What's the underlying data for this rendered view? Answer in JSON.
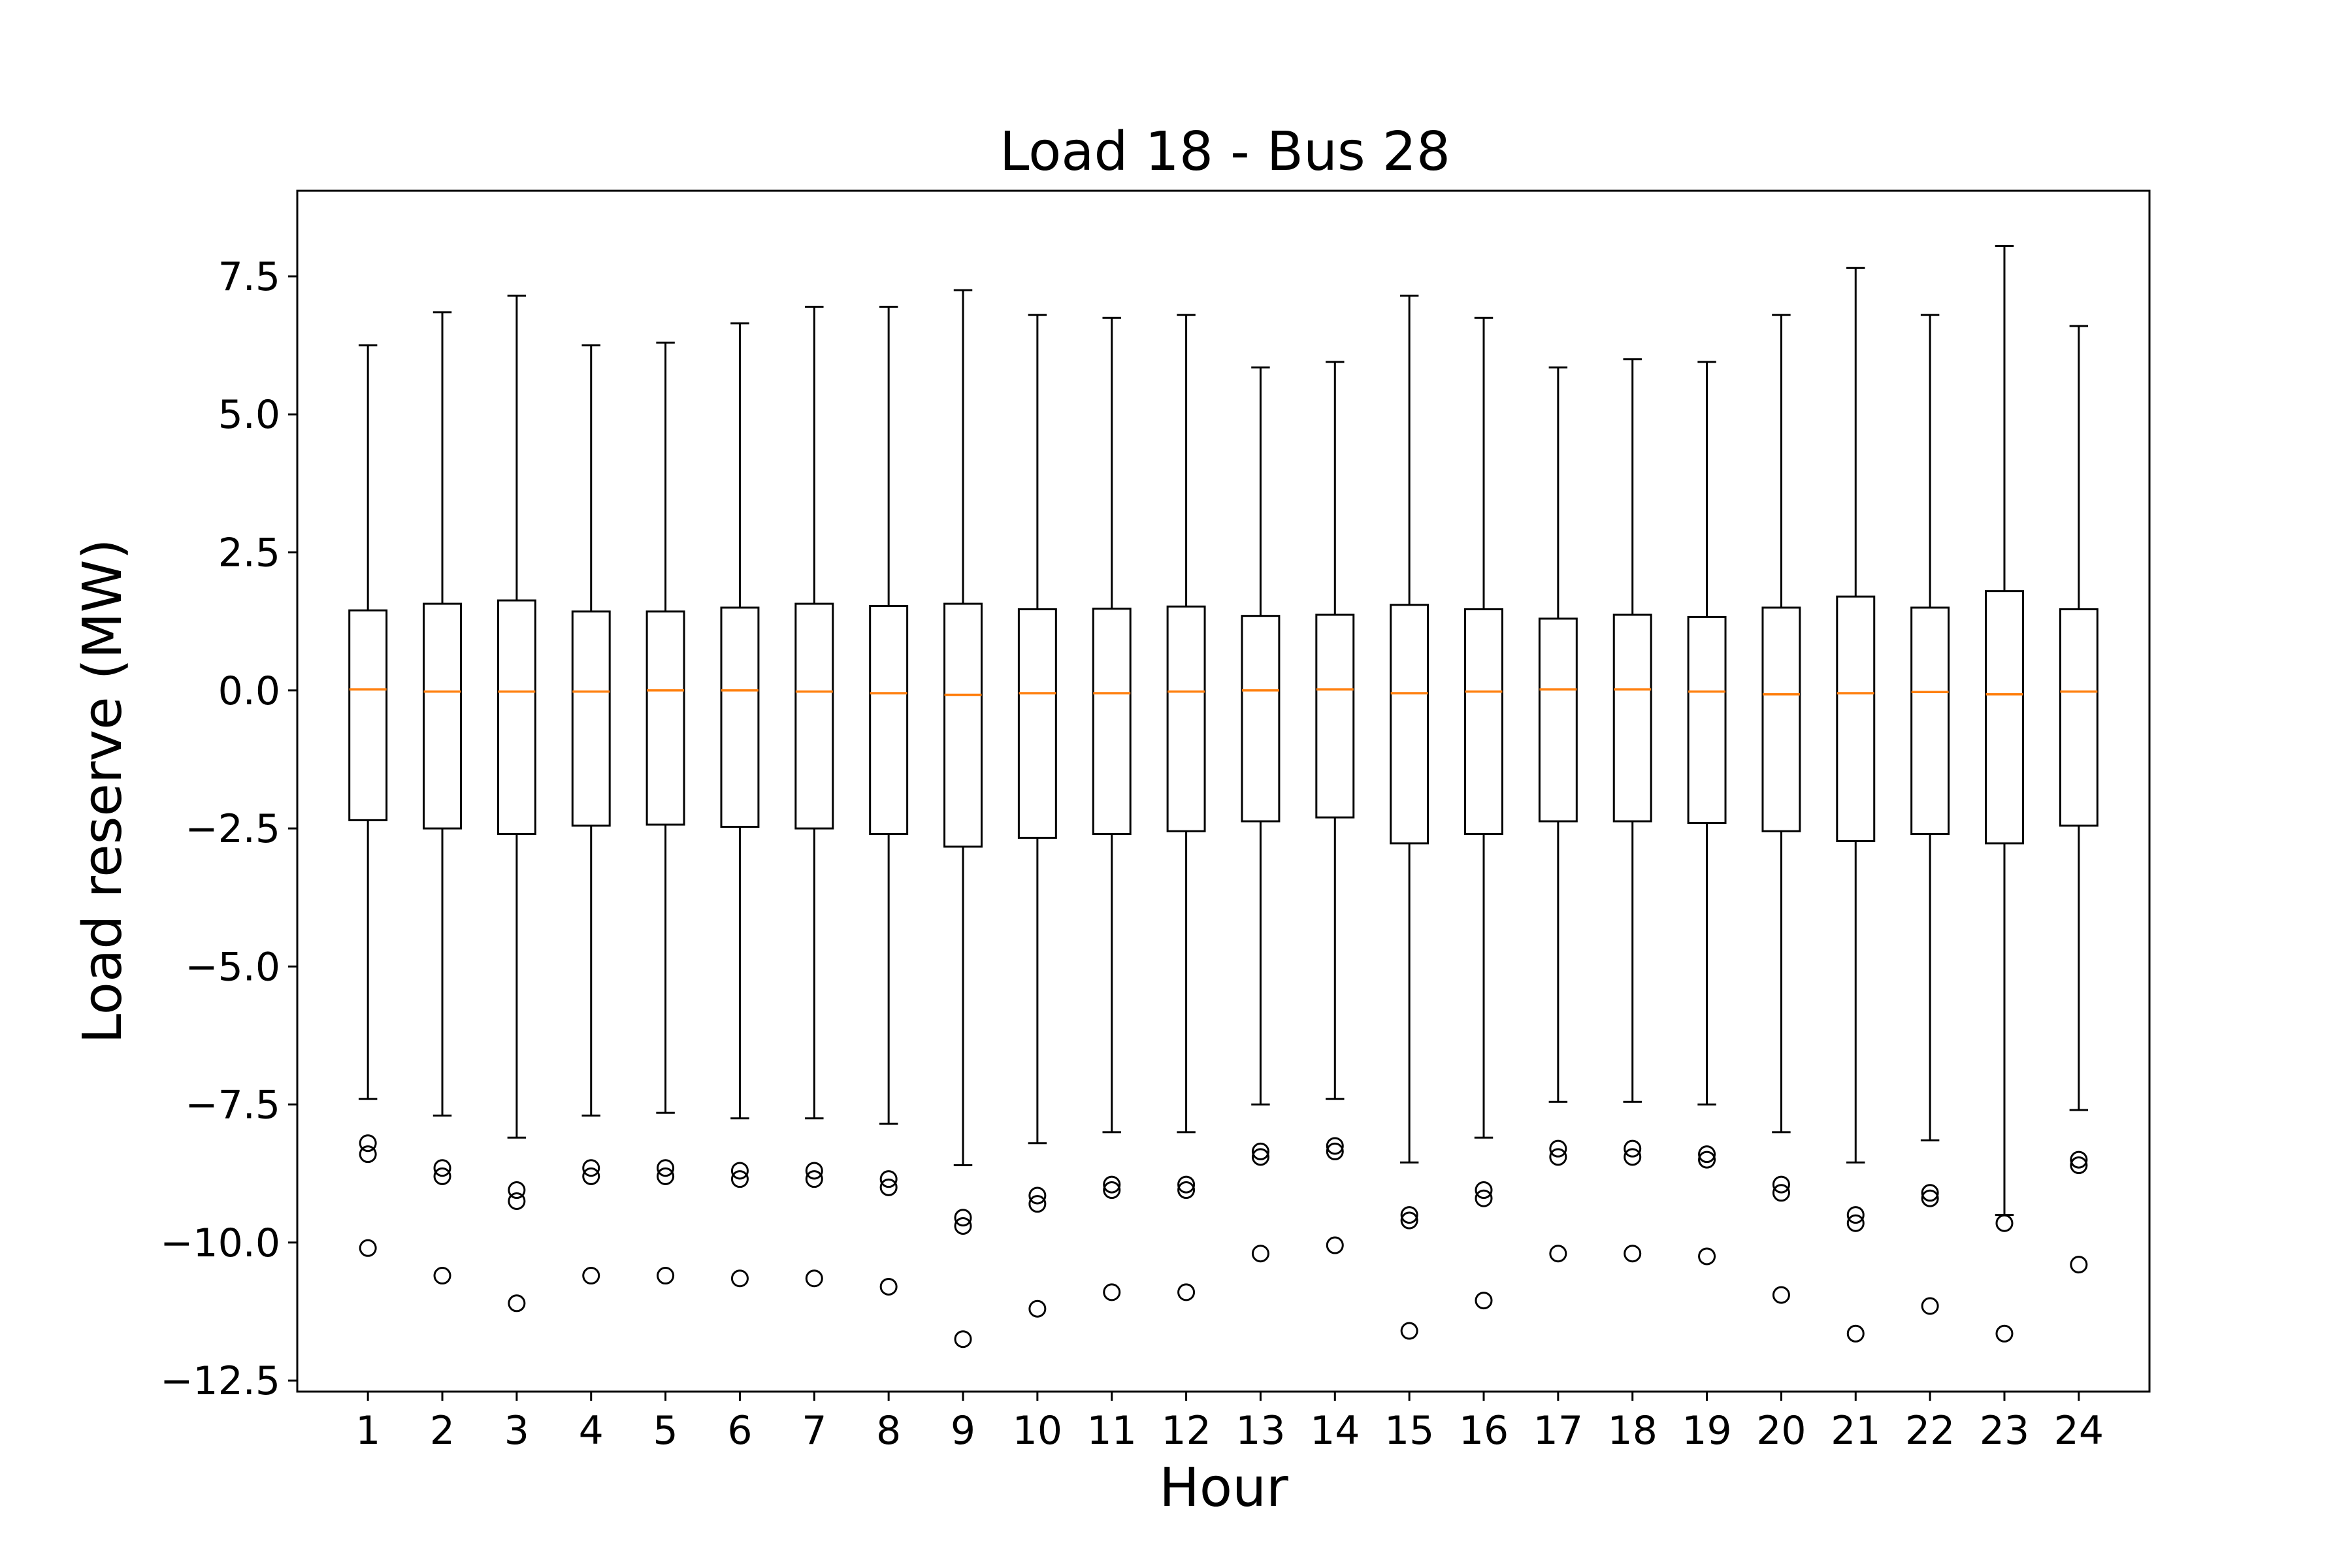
{
  "chart_data": {
    "type": "box",
    "title": "Load 18 - Bus 28",
    "xlabel": "Hour",
    "ylabel": "Load reserve (MW)",
    "ylim": [
      -12.7,
      9.05
    ],
    "yticks": [
      7.5,
      5.0,
      2.5,
      0.0,
      -2.5,
      -5.0,
      -7.5,
      -10.0,
      -12.5
    ],
    "ytick_labels": [
      "7.5",
      "5.0",
      "2.5",
      "0.0",
      "−2.5",
      "−5.0",
      "−7.5",
      "−10.0",
      "−12.5"
    ],
    "grid": false,
    "colors": {
      "box": "#000000",
      "median": "#ff7f0e",
      "flier": "#000000"
    },
    "categories": [
      "1",
      "2",
      "3",
      "4",
      "5",
      "6",
      "7",
      "8",
      "9",
      "10",
      "11",
      "12",
      "13",
      "14",
      "15",
      "16",
      "17",
      "18",
      "19",
      "20",
      "21",
      "22",
      "23",
      "24"
    ],
    "boxes": [
      {
        "whisker_low": -7.4,
        "q1": -2.35,
        "median": 0.02,
        "q3": 1.45,
        "whisker_high": 6.25,
        "fliers": [
          -8.2,
          -8.4,
          -10.1
        ]
      },
      {
        "whisker_low": -7.7,
        "q1": -2.5,
        "median": -0.02,
        "q3": 1.57,
        "whisker_high": 6.85,
        "fliers": [
          -8.65,
          -8.8,
          -10.6
        ]
      },
      {
        "whisker_low": -8.1,
        "q1": -2.6,
        "median": -0.02,
        "q3": 1.63,
        "whisker_high": 7.15,
        "fliers": [
          -9.05,
          -9.25,
          -11.1
        ]
      },
      {
        "whisker_low": -7.7,
        "q1": -2.45,
        "median": -0.02,
        "q3": 1.43,
        "whisker_high": 6.25,
        "fliers": [
          -8.65,
          -8.8,
          -10.6
        ]
      },
      {
        "whisker_low": -7.65,
        "q1": -2.43,
        "median": 0.0,
        "q3": 1.43,
        "whisker_high": 6.3,
        "fliers": [
          -8.65,
          -8.8,
          -10.6
        ]
      },
      {
        "whisker_low": -7.75,
        "q1": -2.47,
        "median": 0.0,
        "q3": 1.5,
        "whisker_high": 6.65,
        "fliers": [
          -8.7,
          -8.85,
          -10.65
        ]
      },
      {
        "whisker_low": -7.75,
        "q1": -2.5,
        "median": -0.02,
        "q3": 1.57,
        "whisker_high": 6.95,
        "fliers": [
          -8.7,
          -8.85,
          -10.65
        ]
      },
      {
        "whisker_low": -7.85,
        "q1": -2.6,
        "median": -0.05,
        "q3": 1.53,
        "whisker_high": 6.95,
        "fliers": [
          -8.85,
          -9.0,
          -10.8
        ]
      },
      {
        "whisker_low": -8.6,
        "q1": -2.83,
        "median": -0.08,
        "q3": 1.57,
        "whisker_high": 7.25,
        "fliers": [
          -9.55,
          -9.7,
          -11.75
        ]
      },
      {
        "whisker_low": -8.2,
        "q1": -2.67,
        "median": -0.05,
        "q3": 1.47,
        "whisker_high": 6.8,
        "fliers": [
          -9.15,
          -9.3,
          -11.2
        ]
      },
      {
        "whisker_low": -8.0,
        "q1": -2.6,
        "median": -0.05,
        "q3": 1.48,
        "whisker_high": 6.75,
        "fliers": [
          -8.95,
          -9.05,
          -10.9
        ]
      },
      {
        "whisker_low": -8.0,
        "q1": -2.55,
        "median": -0.02,
        "q3": 1.52,
        "whisker_high": 6.8,
        "fliers": [
          -8.95,
          -9.05,
          -10.9
        ]
      },
      {
        "whisker_low": -7.5,
        "q1": -2.37,
        "median": 0.0,
        "q3": 1.35,
        "whisker_high": 5.85,
        "fliers": [
          -8.35,
          -8.45,
          -10.2
        ]
      },
      {
        "whisker_low": -7.4,
        "q1": -2.3,
        "median": 0.02,
        "q3": 1.37,
        "whisker_high": 5.95,
        "fliers": [
          -8.25,
          -8.35,
          -10.05
        ]
      },
      {
        "whisker_low": -8.55,
        "q1": -2.77,
        "median": -0.05,
        "q3": 1.55,
        "whisker_high": 7.15,
        "fliers": [
          -9.5,
          -9.6,
          -11.6
        ]
      },
      {
        "whisker_low": -8.1,
        "q1": -2.6,
        "median": -0.02,
        "q3": 1.47,
        "whisker_high": 6.75,
        "fliers": [
          -9.05,
          -9.2,
          -11.05
        ]
      },
      {
        "whisker_low": -7.45,
        "q1": -2.37,
        "median": 0.02,
        "q3": 1.3,
        "whisker_high": 5.85,
        "fliers": [
          -8.3,
          -8.45,
          -10.2
        ]
      },
      {
        "whisker_low": -7.45,
        "q1": -2.37,
        "median": 0.02,
        "q3": 1.37,
        "whisker_high": 6.0,
        "fliers": [
          -8.3,
          -8.45,
          -10.2
        ]
      },
      {
        "whisker_low": -7.5,
        "q1": -2.4,
        "median": -0.02,
        "q3": 1.33,
        "whisker_high": 5.95,
        "fliers": [
          -8.4,
          -8.5,
          -10.25
        ]
      },
      {
        "whisker_low": -8.0,
        "q1": -2.55,
        "median": -0.07,
        "q3": 1.5,
        "whisker_high": 6.8,
        "fliers": [
          -8.95,
          -9.1,
          -10.95
        ]
      },
      {
        "whisker_low": -8.55,
        "q1": -2.73,
        "median": -0.05,
        "q3": 1.7,
        "whisker_high": 7.65,
        "fliers": [
          -9.5,
          -9.65,
          -11.65
        ]
      },
      {
        "whisker_low": -8.15,
        "q1": -2.6,
        "median": -0.03,
        "q3": 1.5,
        "whisker_high": 6.8,
        "fliers": [
          -9.1,
          -9.2,
          -11.15
        ]
      },
      {
        "whisker_low": -9.5,
        "q1": -2.77,
        "median": -0.07,
        "q3": 1.8,
        "whisker_high": 8.05,
        "fliers": [
          -9.65,
          -11.65
        ]
      },
      {
        "whisker_low": -7.6,
        "q1": -2.45,
        "median": -0.02,
        "q3": 1.47,
        "whisker_high": 6.6,
        "fliers": [
          -8.5,
          -8.6,
          -10.4
        ]
      }
    ]
  }
}
